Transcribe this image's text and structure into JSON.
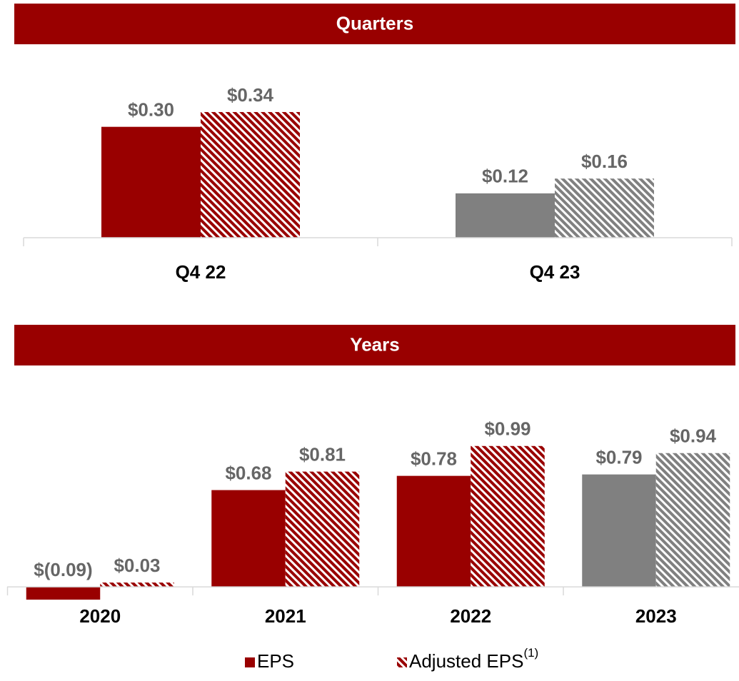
{
  "chart_data": [
    {
      "type": "bar",
      "title": "Quarters",
      "categories": [
        "Q4 22",
        "Q4 23"
      ],
      "ylim": [
        0,
        0.45
      ],
      "series": [
        {
          "name": "EPS",
          "color": "#990000",
          "point_colors": [
            "#990000",
            "#808080"
          ],
          "pattern": "solid",
          "values": [
            0.3,
            0.12
          ],
          "value_labels": [
            "$0.30",
            "$0.12"
          ]
        },
        {
          "name": "Adjusted EPS",
          "footnote_marker": "(1)",
          "color": "#990000",
          "point_colors": [
            "#990000",
            "#808080"
          ],
          "pattern": "hatch",
          "values": [
            0.34,
            0.16
          ],
          "value_labels": [
            "$0.34",
            "$0.16"
          ]
        }
      ]
    },
    {
      "type": "bar",
      "title": "Years",
      "categories": [
        "2020",
        "2021",
        "2022",
        "2023"
      ],
      "ylim": [
        -0.1,
        1.3
      ],
      "legend": true,
      "series": [
        {
          "name": "EPS",
          "color": "#990000",
          "point_colors": [
            "#990000",
            "#990000",
            "#990000",
            "#808080"
          ],
          "pattern": "solid",
          "values": [
            -0.09,
            0.68,
            0.78,
            0.79
          ],
          "value_labels": [
            "$(0.09)",
            "$0.68",
            "$0.78",
            "$0.79"
          ]
        },
        {
          "name": "Adjusted EPS",
          "footnote_marker": "(1)",
          "color": "#990000",
          "point_colors": [
            "#990000",
            "#990000",
            "#990000",
            "#808080"
          ],
          "pattern": "hatch",
          "values": [
            0.03,
            0.81,
            0.99,
            0.94
          ],
          "value_labels": [
            "$0.03",
            "$0.81",
            "$0.99",
            "$0.94"
          ]
        }
      ]
    }
  ]
}
